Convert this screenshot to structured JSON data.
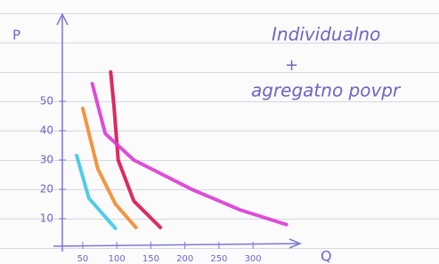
{
  "chart_data": {
    "type": "line",
    "ylabel": "P",
    "xlabel": "Q",
    "annotations": [
      "Individualno",
      "+",
      "agregatno povpr"
    ],
    "xlim": [
      20,
      360
    ],
    "ylim": [
      0,
      80
    ],
    "xticks": [
      50,
      100,
      150,
      200,
      250,
      300
    ],
    "yticks": [
      10,
      20,
      30,
      40,
      50
    ],
    "series": [
      {
        "color": "#3ec6e6",
        "x": [
          41,
          59,
          98
        ],
        "y": [
          31.5,
          17,
          6.7
        ]
      },
      {
        "color": "#f28a2c",
        "x": [
          50,
          72,
          98,
          128
        ],
        "y": [
          47.6,
          27,
          15,
          7
        ]
      },
      {
        "color": "#d9134f",
        "x": [
          91,
          96,
          102,
          125,
          164
        ],
        "y": [
          60,
          48,
          30,
          16,
          7
        ]
      },
      {
        "color": "#d93ad4",
        "x": [
          64,
          83,
          125,
          210,
          281,
          349
        ],
        "y": [
          56,
          39,
          30,
          20,
          13,
          8
        ]
      }
    ]
  }
}
